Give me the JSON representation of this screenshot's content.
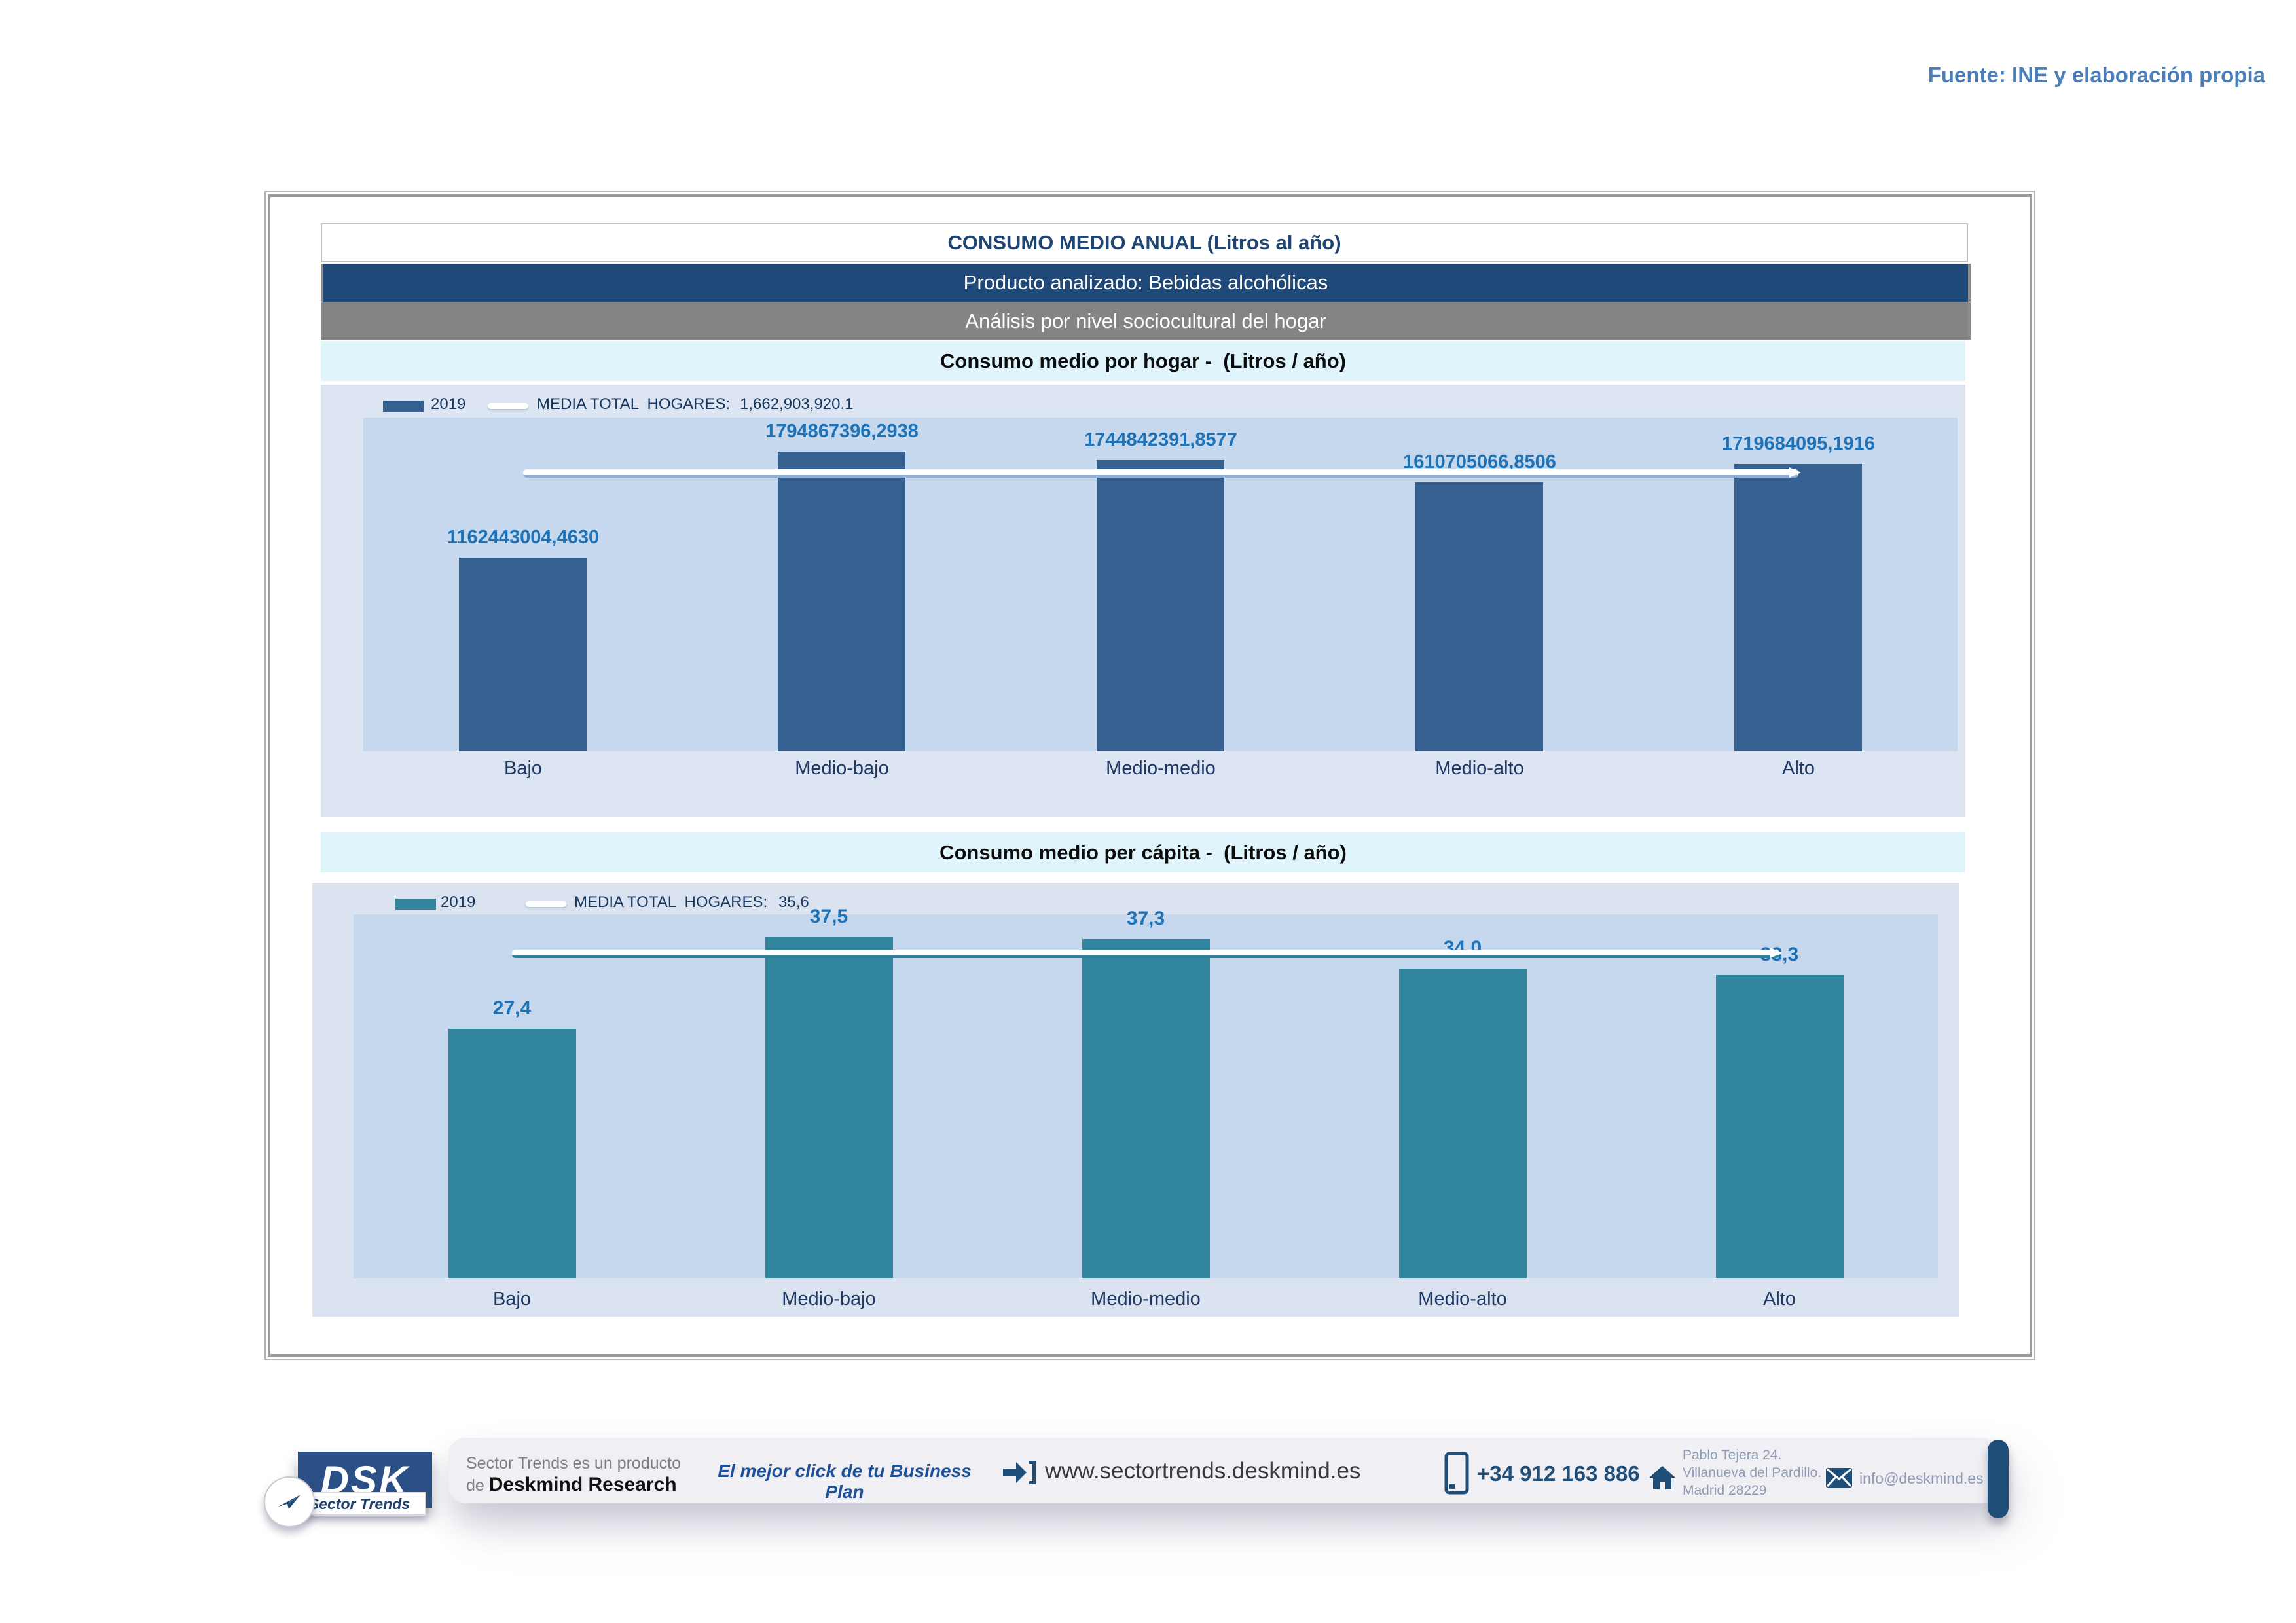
{
  "source_note": "Fuente: INE y elaboración propia",
  "header": {
    "title": "CONSUMO MEDIO ANUAL (Litros al año)",
    "product": "Producto analizado: Bebidas alcohólicas",
    "analysis": "Análisis por nivel sociocultural del hogar"
  },
  "chart_data": [
    {
      "type": "bar",
      "title": "Consumo medio por hogar -  (Litros / año)",
      "categories": [
        "Bajo",
        "Medio-bajo",
        "Medio-medio",
        "Medio-alto",
        "Alto"
      ],
      "series": [
        {
          "name": "2019",
          "values": [
            1162443004.463,
            1794867396.2938,
            1744842391.8577,
            1610705066.8506,
            1719684095.1916
          ]
        }
      ],
      "value_labels": [
        "1162443004,4630",
        "1794867396,2938",
        "1744842391,8577",
        "1610705066,8506",
        "1719684095,1916"
      ],
      "reference_line": {
        "label": "MEDIA TOTAL  HOGARES:",
        "value": 1662903920.1,
        "display": "1,662,903,920.1"
      },
      "xlabel": "",
      "ylabel": "",
      "ylim": [
        0,
        2000000000
      ],
      "grid": false,
      "legend_position": "top-left",
      "bar_color": "#36608F",
      "ref_shadow_color": "#8FAFD9",
      "value_label_color": "#1E73B8"
    },
    {
      "type": "bar",
      "title": "Consumo medio per cápita -  (Litros / año)",
      "categories": [
        "Bajo",
        "Medio-bajo",
        "Medio-medio",
        "Medio-alto",
        "Alto"
      ],
      "series": [
        {
          "name": "2019",
          "values": [
            27.4,
            37.5,
            37.3,
            34.0,
            33.3
          ]
        }
      ],
      "value_labels": [
        "27,4",
        "37,5",
        "37,3",
        "34,0",
        "33,3"
      ],
      "reference_line": {
        "label": "MEDIA TOTAL  HOGARES:",
        "value": 35.6,
        "display": "35,6"
      },
      "xlabel": "",
      "ylabel": "",
      "ylim": [
        0,
        40
      ],
      "grid": false,
      "legend_position": "top-left",
      "bar_color": "#31859C",
      "ref_shadow_color": "#2E8599",
      "value_label_color": "#1E73B8"
    }
  ],
  "footer": {
    "logo_acronym": "DSK",
    "logo_tagline": "Sector Trends",
    "product_line": "Sector Trends es un producto",
    "by_prefix": "de ",
    "company": "Deskmind Research",
    "slogan": "El mejor click de tu Business Plan",
    "website": "www.sectortrends.deskmind.es",
    "phone": "+34 912 163 886",
    "address_lines": [
      "Pablo Tejera 24.",
      "Villanueva del Pardillo.",
      "Madrid 28229"
    ],
    "email": "info@deskmind.es",
    "icons": {
      "website": "arrow-right-bracket-icon",
      "phone": "smartphone-icon",
      "address": "home-icon",
      "email": "envelope-icon",
      "logo": "paper-plane-icon"
    },
    "accent_color": "#1F4E79"
  }
}
